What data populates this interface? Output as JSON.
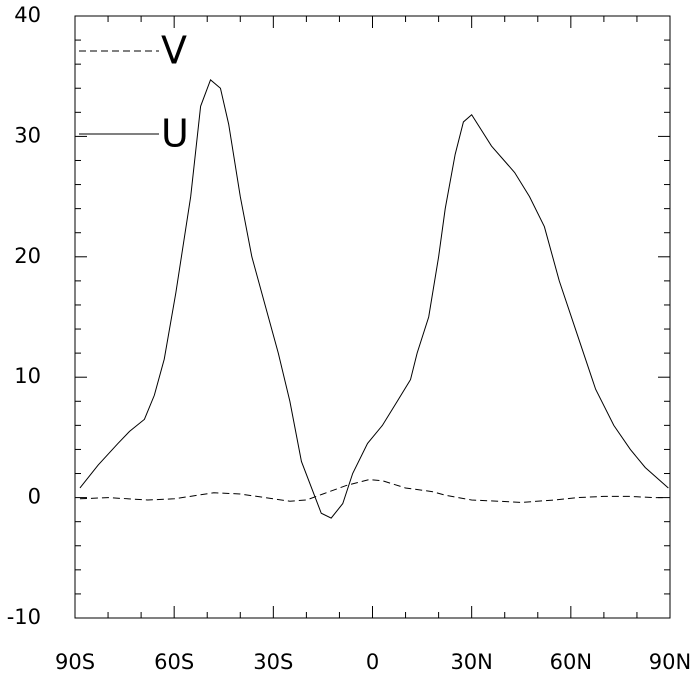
{
  "chart_data": {
    "type": "line",
    "series": [
      {
        "name": "V",
        "color": "#000000",
        "dash": "dashed",
        "x": [
          -88.5,
          -80,
          -68,
          -60,
          -48,
          -40,
          -30,
          -25,
          -20,
          -15,
          -8,
          -1,
          3,
          10,
          18,
          22,
          30,
          38,
          45,
          55,
          62,
          70,
          78,
          85,
          89
        ],
        "values": [
          -0.1,
          0,
          -0.2,
          -0.1,
          0.4,
          0.3,
          -0.1,
          -0.3,
          -0.2,
          0.3,
          1.0,
          1.5,
          1.4,
          0.8,
          0.5,
          0.2,
          -0.2,
          -0.3,
          -0.4,
          -0.2,
          0,
          0.1,
          0.1,
          0,
          0
        ]
      },
      {
        "name": "U",
        "color": "#000000",
        "dash": "solid",
        "x": [
          -88.5,
          -83,
          -77,
          -73.5,
          -69,
          -66,
          -63,
          -59.5,
          -55,
          -52,
          -49,
          -46,
          -43.5,
          -40,
          -36.5,
          -32.5,
          -28.5,
          -25,
          -21.5,
          -15.5,
          -12.5,
          -9,
          -6,
          -1.5,
          3,
          7.5,
          11.5,
          13.5,
          17,
          20,
          22,
          25,
          27.5,
          30,
          33,
          36,
          43,
          47.5,
          52,
          56.5,
          62,
          67.5,
          73,
          78,
          82.5,
          89.5
        ],
        "values": [
          0.8,
          2.7,
          4.5,
          5.5,
          6.5,
          8.5,
          11.5,
          17,
          25,
          32.5,
          34.7,
          34,
          31,
          25,
          20,
          16,
          12,
          8,
          3,
          -1.3,
          -1.7,
          -0.5,
          2,
          4.5,
          6,
          8,
          9.8,
          12,
          15,
          20,
          24,
          28.5,
          31.2,
          31.8,
          30.5,
          29.2,
          27,
          25,
          22.5,
          18,
          13.5,
          9,
          6,
          4,
          2.5,
          0.8
        ]
      }
    ],
    "xlim": [
      -90,
      90
    ],
    "xticks": [
      {
        "value": -90,
        "label": "90S"
      },
      {
        "value": -60,
        "label": "60S"
      },
      {
        "value": -30,
        "label": "30S"
      },
      0,
      {
        "value": 30,
        "label": "30N"
      },
      {
        "value": 60,
        "label": "60N"
      },
      {
        "value": 90,
        "label": "90N"
      }
    ],
    "xminorticks": [
      -80,
      -70,
      -50,
      -40,
      -20,
      -10,
      10,
      20,
      40,
      50,
      70,
      80
    ],
    "ylim": [
      -10,
      40
    ],
    "yticks": [
      -10,
      0,
      10,
      20,
      30,
      40
    ],
    "yminorticks": [
      -8,
      -6,
      -4,
      -2,
      2,
      4,
      6,
      8,
      12,
      14,
      16,
      18,
      22,
      24,
      26,
      28,
      32,
      34,
      36,
      38
    ],
    "legend": "upper left"
  }
}
